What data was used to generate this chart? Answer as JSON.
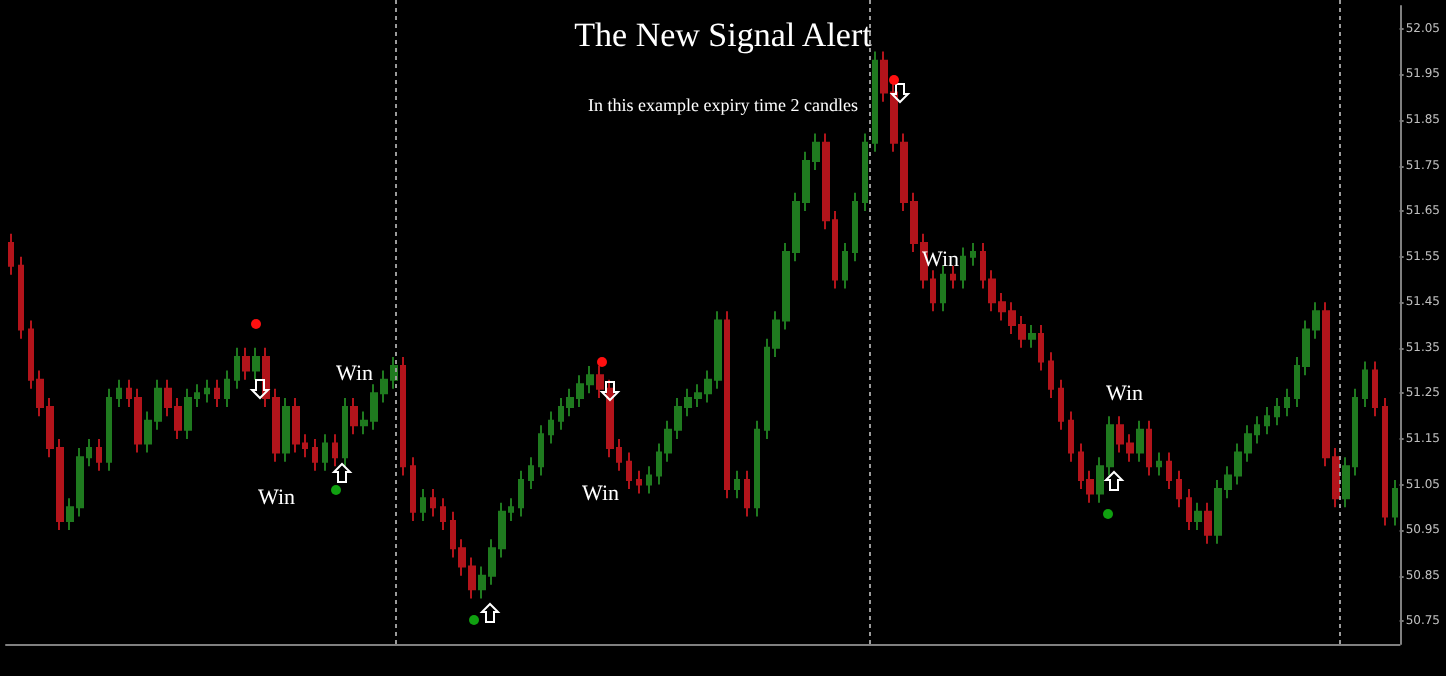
{
  "chart_data": {
    "type": "candlestick",
    "title": "The New Signal Alert",
    "subtitle": "In this example expiry time 2 candles",
    "annotations": [
      "Win",
      "Win",
      "Win",
      "Win",
      "Win"
    ],
    "colors": [
      "#b3141b",
      "#b3141b",
      "#b3141b",
      "#b3141b",
      "#b3141b",
      "#b3141b",
      "#1f7a1f",
      "#1f7a1f",
      "#1f7a1f",
      "#b3141b",
      "#1f7a1f",
      "#1f7a1f",
      "#b3141b",
      "#b3141b",
      "#1f7a1f",
      "#1f7a1f",
      "#b3141b",
      "#b3141b",
      "#1f7a1f",
      "#1f7a1f",
      "#1f7a1f",
      "#b3141b",
      "#1f7a1f",
      "#1f7a1f",
      "#b3141b",
      "#1f7a1f",
      "#b3141b",
      "#b3141b",
      "#1f7a1f",
      "#b3141b",
      "#b3141b",
      "#b3141b",
      "#1f7a1f",
      "#b3141b",
      "#1f7a1f",
      "#b3141b",
      "#1f7a1f",
      "#1f7a1f",
      "#1f7a1f",
      "#1f7a1f",
      "#b3141b",
      "#b3141b",
      "#1f7a1f",
      "#b3141b",
      "#b3141b",
      "#b3141b",
      "#b3141b",
      "#b3141b",
      "#1f7a1f",
      "#1f7a1f",
      "#1f7a1f",
      "#1f7a1f",
      "#1f7a1f",
      "#1f7a1f",
      "#1f7a1f",
      "#1f7a1f",
      "#1f7a1f",
      "#1f7a1f",
      "#1f7a1f",
      "#1f7a1f",
      "#b3141b",
      "#b3141b",
      "#b3141b",
      "#b3141b",
      "#b3141b",
      "#1f7a1f",
      "#1f7a1f",
      "#1f7a1f",
      "#1f7a1f",
      "#1f7a1f",
      "#1f7a1f",
      "#1f7a1f",
      "#1f7a1f",
      "#b3141b",
      "#1f7a1f",
      "#b3141b",
      "#1f7a1f",
      "#1f7a1f",
      "#1f7a1f",
      "#1f7a1f",
      "#1f7a1f",
      "#1f7a1f",
      "#1f7a1f",
      "#b3141b",
      "#b3141b",
      "#1f7a1f",
      "#1f7a1f",
      "#1f7a1f",
      "#1f7a1f",
      "#b3141b",
      "#b3141b",
      "#b3141b",
      "#b3141b",
      "#b3141b",
      "#b3141b",
      "#1f7a1f",
      "#b3141b",
      "#1f7a1f",
      "#1f7a1f",
      "#b3141b",
      "#b3141b",
      "#b3141b",
      "#b3141b",
      "#b3141b",
      "#1f7a1f",
      "#b3141b",
      "#b3141b",
      "#b3141b",
      "#b3141b",
      "#b3141b",
      "#b3141b",
      "#1f7a1f",
      "#1f7a1f",
      "#b3141b",
      "#b3141b",
      "#1f7a1f",
      "#b3141b",
      "#1f7a1f",
      "#b3141b",
      "#b3141b",
      "#b3141b",
      "#1f7a1f",
      "#b3141b",
      "#1f7a1f",
      "#1f7a1f",
      "#1f7a1f",
      "#1f7a1f",
      "#1f7a1f",
      "#1f7a1f",
      "#1f7a1f",
      "#1f7a1f",
      "#1f7a1f",
      "#1f7a1f",
      "#1f7a1f",
      "#b3141b",
      "#b3141b",
      "#1f7a1f",
      "#1f7a1f",
      "#1f7a1f",
      "#b3141b",
      "#b3141b",
      "#1f7a1f"
    ],
    "ylim": [
      50.7,
      52.1
    ],
    "yticks": [
      50.75,
      50.85,
      50.95,
      51.05,
      51.15,
      51.25,
      51.35,
      51.45,
      51.55,
      51.65,
      51.75,
      51.85,
      51.95,
      52.05
    ],
    "grid": false,
    "tick_labels": "y",
    "categories": [
      null,
      null,
      null,
      null,
      null,
      null,
      null,
      null,
      null,
      null,
      null,
      null,
      null,
      null,
      null,
      null,
      null,
      null,
      null,
      null,
      null,
      null,
      null,
      null,
      null,
      null,
      null,
      null,
      null,
      null,
      null,
      null,
      null,
      null,
      null,
      null,
      null,
      null,
      null,
      null,
      null,
      null,
      null,
      null,
      null,
      null,
      null,
      null,
      null,
      null,
      null,
      null,
      null,
      null,
      null,
      null,
      null,
      null,
      null,
      null,
      null,
      null,
      null,
      null,
      null,
      null,
      null,
      null,
      null,
      null,
      null,
      null,
      null,
      null,
      null,
      null,
      null,
      null,
      null,
      null,
      null,
      null,
      null,
      null,
      null,
      null,
      null,
      null,
      null,
      null,
      null,
      null,
      null,
      null,
      null,
      null,
      null,
      null,
      null,
      null,
      null,
      null,
      null,
      null,
      null,
      null,
      null,
      null,
      null,
      null,
      null,
      null,
      null,
      null,
      null,
      null,
      null,
      null,
      null,
      null,
      null,
      null,
      null,
      null,
      null,
      null,
      null,
      null,
      null,
      null,
      null,
      null,
      null,
      null,
      null,
      null,
      null,
      null,
      null,
      null,
      null,
      null
    ],
    "ohlc": [
      [
        51.58,
        51.6,
        51.51,
        51.53
      ],
      [
        51.53,
        51.55,
        51.37,
        51.39
      ],
      [
        51.39,
        51.41,
        51.26,
        51.28
      ],
      [
        51.28,
        51.3,
        51.2,
        51.22
      ],
      [
        51.22,
        51.24,
        51.11,
        51.13
      ],
      [
        51.13,
        51.15,
        50.95,
        50.97
      ],
      [
        50.97,
        51.02,
        50.95,
        51.0
      ],
      [
        51.0,
        51.13,
        50.98,
        51.11
      ],
      [
        51.11,
        51.15,
        51.09,
        51.13
      ],
      [
        51.13,
        51.15,
        51.08,
        51.1
      ],
      [
        51.1,
        51.26,
        51.08,
        51.24
      ],
      [
        51.24,
        51.28,
        51.22,
        51.26
      ],
      [
        51.26,
        51.28,
        51.22,
        51.24
      ],
      [
        51.24,
        51.26,
        51.12,
        51.14
      ],
      [
        51.14,
        51.21,
        51.12,
        51.19
      ],
      [
        51.19,
        51.28,
        51.17,
        51.26
      ],
      [
        51.26,
        51.28,
        51.2,
        51.22
      ],
      [
        51.22,
        51.24,
        51.15,
        51.17
      ],
      [
        51.17,
        51.26,
        51.15,
        51.24
      ],
      [
        51.24,
        51.27,
        51.22,
        51.25
      ],
      [
        51.25,
        51.28,
        51.23,
        51.26
      ],
      [
        51.26,
        51.28,
        51.22,
        51.24
      ],
      [
        51.24,
        51.3,
        51.22,
        51.28
      ],
      [
        51.28,
        51.35,
        51.26,
        51.33
      ],
      [
        51.33,
        51.35,
        51.28,
        51.3
      ],
      [
        51.3,
        51.35,
        51.28,
        51.33
      ],
      [
        51.33,
        51.35,
        51.22,
        51.24
      ],
      [
        51.24,
        51.26,
        51.1,
        51.12
      ],
      [
        51.12,
        51.24,
        51.1,
        51.22
      ],
      [
        51.22,
        51.24,
        51.12,
        51.14
      ],
      [
        51.14,
        51.16,
        51.11,
        51.13
      ],
      [
        51.13,
        51.15,
        51.08,
        51.1
      ],
      [
        51.1,
        51.16,
        51.08,
        51.14
      ],
      [
        51.14,
        51.16,
        51.09,
        51.11
      ],
      [
        51.11,
        51.24,
        51.09,
        51.22
      ],
      [
        51.22,
        51.24,
        51.16,
        51.18
      ],
      [
        51.18,
        51.21,
        51.16,
        51.19
      ],
      [
        51.19,
        51.27,
        51.17,
        51.25
      ],
      [
        51.25,
        51.3,
        51.23,
        51.28
      ],
      [
        51.28,
        51.33,
        51.26,
        51.31
      ],
      [
        51.31,
        51.33,
        51.07,
        51.09
      ],
      [
        51.09,
        51.11,
        50.97,
        50.99
      ],
      [
        50.99,
        51.04,
        50.97,
        51.02
      ],
      [
        51.02,
        51.04,
        50.98,
        51.0
      ],
      [
        51.0,
        51.02,
        50.95,
        50.97
      ],
      [
        50.97,
        50.99,
        50.89,
        50.91
      ],
      [
        50.91,
        50.93,
        50.85,
        50.87
      ],
      [
        50.87,
        50.89,
        50.8,
        50.82
      ],
      [
        50.82,
        50.87,
        50.8,
        50.85
      ],
      [
        50.85,
        50.93,
        50.83,
        50.91
      ],
      [
        50.91,
        51.01,
        50.89,
        50.99
      ],
      [
        50.99,
        51.02,
        50.97,
        51.0
      ],
      [
        51.0,
        51.08,
        50.98,
        51.06
      ],
      [
        51.06,
        51.11,
        51.04,
        51.09
      ],
      [
        51.09,
        51.18,
        51.07,
        51.16
      ],
      [
        51.16,
        51.21,
        51.14,
        51.19
      ],
      [
        51.19,
        51.24,
        51.17,
        51.22
      ],
      [
        51.22,
        51.26,
        51.2,
        51.24
      ],
      [
        51.24,
        51.29,
        51.22,
        51.27
      ],
      [
        51.27,
        51.31,
        51.25,
        51.29
      ],
      [
        51.29,
        51.31,
        51.24,
        51.26
      ],
      [
        51.26,
        51.28,
        51.11,
        51.13
      ],
      [
        51.13,
        51.15,
        51.08,
        51.1
      ],
      [
        51.1,
        51.12,
        51.04,
        51.06
      ],
      [
        51.06,
        51.08,
        51.03,
        51.05
      ],
      [
        51.05,
        51.09,
        51.03,
        51.07
      ],
      [
        51.07,
        51.14,
        51.05,
        51.12
      ],
      [
        51.12,
        51.19,
        51.1,
        51.17
      ],
      [
        51.17,
        51.24,
        51.15,
        51.22
      ],
      [
        51.22,
        51.26,
        51.2,
        51.24
      ],
      [
        51.24,
        51.27,
        51.22,
        51.25
      ],
      [
        51.25,
        51.3,
        51.23,
        51.28
      ],
      [
        51.28,
        51.43,
        51.26,
        51.41
      ],
      [
        51.41,
        51.43,
        51.02,
        51.04
      ],
      [
        51.04,
        51.08,
        51.02,
        51.06
      ],
      [
        51.06,
        51.08,
        50.98,
        51.0
      ],
      [
        51.0,
        51.19,
        50.98,
        51.17
      ],
      [
        51.17,
        51.37,
        51.15,
        51.35
      ],
      [
        51.35,
        51.43,
        51.33,
        51.41
      ],
      [
        51.41,
        51.58,
        51.39,
        51.56
      ],
      [
        51.56,
        51.69,
        51.54,
        51.67
      ],
      [
        51.67,
        51.78,
        51.65,
        51.76
      ],
      [
        51.76,
        51.82,
        51.74,
        51.8
      ],
      [
        51.8,
        51.82,
        51.61,
        51.63
      ],
      [
        51.63,
        51.65,
        51.48,
        51.5
      ],
      [
        51.5,
        51.58,
        51.48,
        51.56
      ],
      [
        51.56,
        51.69,
        51.54,
        51.67
      ],
      [
        51.67,
        51.82,
        51.65,
        51.8
      ],
      [
        51.8,
        52.0,
        51.78,
        51.98
      ],
      [
        51.98,
        52.0,
        51.89,
        51.91
      ],
      [
        51.91,
        51.93,
        51.78,
        51.8
      ],
      [
        51.8,
        51.82,
        51.65,
        51.67
      ],
      [
        51.67,
        51.69,
        51.56,
        51.58
      ],
      [
        51.58,
        51.6,
        51.48,
        51.5
      ],
      [
        51.5,
        51.52,
        51.43,
        51.45
      ],
      [
        51.45,
        51.53,
        51.43,
        51.51
      ],
      [
        51.51,
        51.53,
        51.48,
        51.5
      ],
      [
        51.5,
        51.57,
        51.48,
        51.55
      ],
      [
        51.55,
        51.58,
        51.53,
        51.56
      ],
      [
        51.56,
        51.58,
        51.48,
        51.5
      ],
      [
        51.5,
        51.52,
        51.43,
        51.45
      ],
      [
        51.45,
        51.47,
        51.41,
        51.43
      ],
      [
        51.43,
        51.45,
        51.38,
        51.4
      ],
      [
        51.4,
        51.42,
        51.35,
        51.37
      ],
      [
        51.37,
        51.4,
        51.35,
        51.38
      ],
      [
        51.38,
        51.4,
        51.3,
        51.32
      ],
      [
        51.32,
        51.34,
        51.24,
        51.26
      ],
      [
        51.26,
        51.28,
        51.17,
        51.19
      ],
      [
        51.19,
        51.21,
        51.1,
        51.12
      ],
      [
        51.12,
        51.14,
        51.04,
        51.06
      ],
      [
        51.06,
        51.08,
        51.01,
        51.03
      ],
      [
        51.03,
        51.11,
        51.01,
        51.09
      ],
      [
        51.09,
        51.2,
        51.07,
        51.18
      ],
      [
        51.18,
        51.2,
        51.12,
        51.14
      ],
      [
        51.14,
        51.16,
        51.1,
        51.12
      ],
      [
        51.12,
        51.19,
        51.1,
        51.17
      ],
      [
        51.17,
        51.19,
        51.07,
        51.09
      ],
      [
        51.09,
        51.12,
        51.07,
        51.1
      ],
      [
        51.1,
        51.12,
        51.04,
        51.06
      ],
      [
        51.06,
        51.08,
        51.0,
        51.02
      ],
      [
        51.02,
        51.04,
        50.95,
        50.97
      ],
      [
        50.97,
        51.01,
        50.95,
        50.99
      ],
      [
        50.99,
        51.01,
        50.92,
        50.94
      ],
      [
        50.94,
        51.06,
        50.92,
        51.04
      ],
      [
        51.04,
        51.09,
        51.02,
        51.07
      ],
      [
        51.07,
        51.14,
        51.05,
        51.12
      ],
      [
        51.12,
        51.18,
        51.1,
        51.16
      ],
      [
        51.16,
        51.2,
        51.14,
        51.18
      ],
      [
        51.18,
        51.22,
        51.16,
        51.2
      ],
      [
        51.2,
        51.24,
        51.18,
        51.22
      ],
      [
        51.22,
        51.26,
        51.2,
        51.24
      ],
      [
        51.24,
        51.33,
        51.22,
        51.31
      ],
      [
        51.31,
        51.41,
        51.29,
        51.39
      ],
      [
        51.39,
        51.45,
        51.37,
        51.43
      ],
      [
        51.43,
        51.45,
        51.09,
        51.11
      ],
      [
        51.11,
        51.13,
        51.0,
        51.02
      ],
      [
        51.02,
        51.11,
        51.0,
        51.09
      ],
      [
        51.09,
        51.26,
        51.07,
        51.24
      ],
      [
        51.24,
        51.32,
        51.22,
        51.3
      ],
      [
        51.3,
        51.32,
        51.2,
        51.22
      ],
      [
        51.22,
        51.24,
        50.96,
        50.98
      ],
      [
        50.98,
        51.06,
        50.96,
        51.04
      ]
    ]
  }
}
